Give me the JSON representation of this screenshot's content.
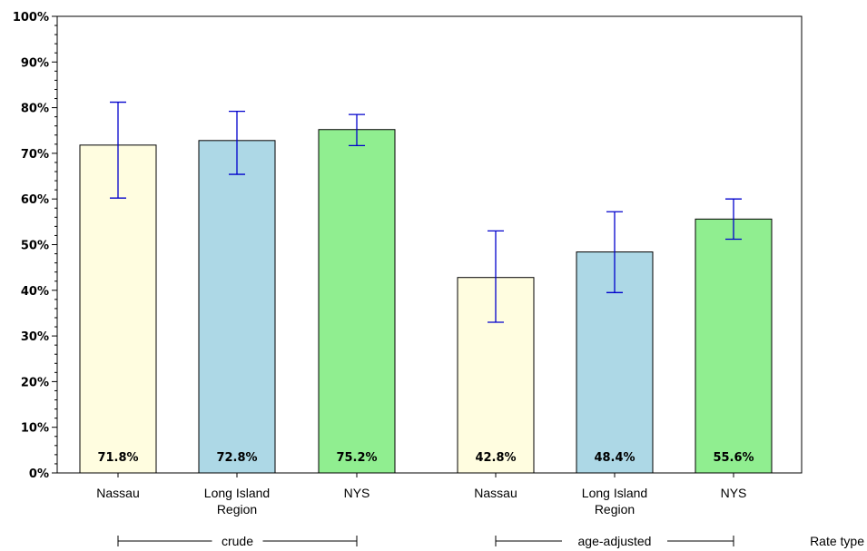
{
  "chart_data": {
    "type": "bar",
    "title": "",
    "xlabel": "Rate type",
    "ylabel": "",
    "ylim": [
      0,
      100
    ],
    "y_ticks": [
      "0%",
      "10%",
      "20%",
      "30%",
      "40%",
      "50%",
      "60%",
      "70%",
      "80%",
      "90%",
      "100%"
    ],
    "grid": false,
    "groups": [
      {
        "name": "crude",
        "bars": [
          {
            "category": "Nassau",
            "value": 71.8,
            "label": "71.8%",
            "ci_low": 60.2,
            "ci_high": 81.2,
            "color": "#FFFDE0"
          },
          {
            "category": "Long Island Region",
            "value": 72.8,
            "label": "72.8%",
            "ci_low": 65.4,
            "ci_high": 79.2,
            "color": "#ADD8E6"
          },
          {
            "category": "NYS",
            "value": 75.2,
            "label": "75.2%",
            "ci_low": 71.7,
            "ci_high": 78.5,
            "color": "#90EE90"
          }
        ]
      },
      {
        "name": "age-adjusted",
        "bars": [
          {
            "category": "Nassau",
            "value": 42.8,
            "label": "42.8%",
            "ci_low": 33.0,
            "ci_high": 53.0,
            "color": "#FFFDE0"
          },
          {
            "category": "Long Island Region",
            "value": 48.4,
            "label": "48.4%",
            "ci_low": 39.5,
            "ci_high": 57.2,
            "color": "#ADD8E6"
          },
          {
            "category": "NYS",
            "value": 55.6,
            "label": "55.6%",
            "ci_low": 51.2,
            "ci_high": 60.0,
            "color": "#90EE90"
          }
        ]
      }
    ],
    "colors": {
      "error_bar": "#0000CC",
      "bar_stroke": "#000000"
    }
  }
}
